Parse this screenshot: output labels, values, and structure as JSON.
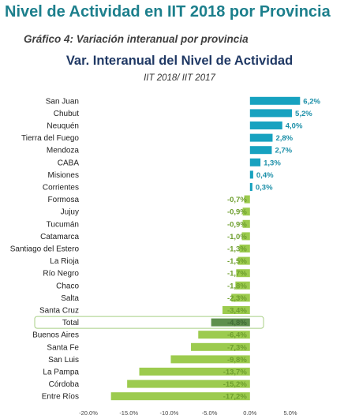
{
  "header": {
    "title": "Nivel de Actividad en IIT 2018 por Provincia",
    "subtitle": "Gráfico 4: Variación interanual por provincia"
  },
  "colors": {
    "title": "#1c7f8c",
    "chart_title": "#1f3864",
    "positive": "#17a2c0",
    "negative": "#9ccb4e",
    "total": "#5e8f4d",
    "positive_label": "#1c8fa8",
    "negative_label": "#6e9f2e",
    "highlight_border": "#a8cf85"
  },
  "chart_data": {
    "type": "bar",
    "orientation": "horizontal",
    "title": "Var. Interanual del Nivel de Actividad",
    "subtitle": "IIT 2018/ IIT 2017",
    "categories": [
      "San Juan",
      "Chubut",
      "Neuquén",
      "Tierra del Fuego",
      "Mendoza",
      "CABA",
      "Misiones",
      "Corrientes",
      "Formosa",
      "Jujuy",
      "Tucumán",
      "Catamarca",
      "Santiago del Estero",
      "La Rioja",
      "Río Negro",
      "Chaco",
      "Salta",
      "Santa Cruz",
      "Total",
      "Buenos Aires",
      "Santa Fe",
      "San Luis",
      "La Pampa",
      "Córdoba",
      "Entre Ríos"
    ],
    "values": [
      6.2,
      5.2,
      4.0,
      2.8,
      2.7,
      1.3,
      0.4,
      0.3,
      -0.7,
      -0.9,
      -0.9,
      -1.0,
      -1.3,
      -1.5,
      -1.7,
      -1.8,
      -2.3,
      -3.4,
      -4.8,
      -6.4,
      -7.3,
      -9.8,
      -13.7,
      -15.2,
      -17.2
    ],
    "data_labels": [
      "6,2%",
      "5,2%",
      "4,0%",
      "2,8%",
      "2,7%",
      "1,3%",
      "0,4%",
      "0,3%",
      "-0,7%",
      "-0,9%",
      "-0,9%",
      "-1,0%",
      "-1,3%",
      "-1,5%",
      "-1,7%",
      "-1,8%",
      "-2,3%",
      "-3,4%",
      "-4,8%",
      "-6,4%",
      "-7,3%",
      "-9,8%",
      "-13,7%",
      "-15,2%",
      "-17,2%"
    ],
    "highlight_category": "Total",
    "xlim": [
      -20,
      5
    ],
    "x_ticks": [
      -20,
      -15,
      -10,
      -5,
      0,
      5
    ],
    "x_tick_labels": [
      "-20,0%",
      "-15,0%",
      "-10,0%",
      "-5,0%",
      "0,0%",
      "5,0%"
    ],
    "grid": false,
    "legend": "none"
  }
}
